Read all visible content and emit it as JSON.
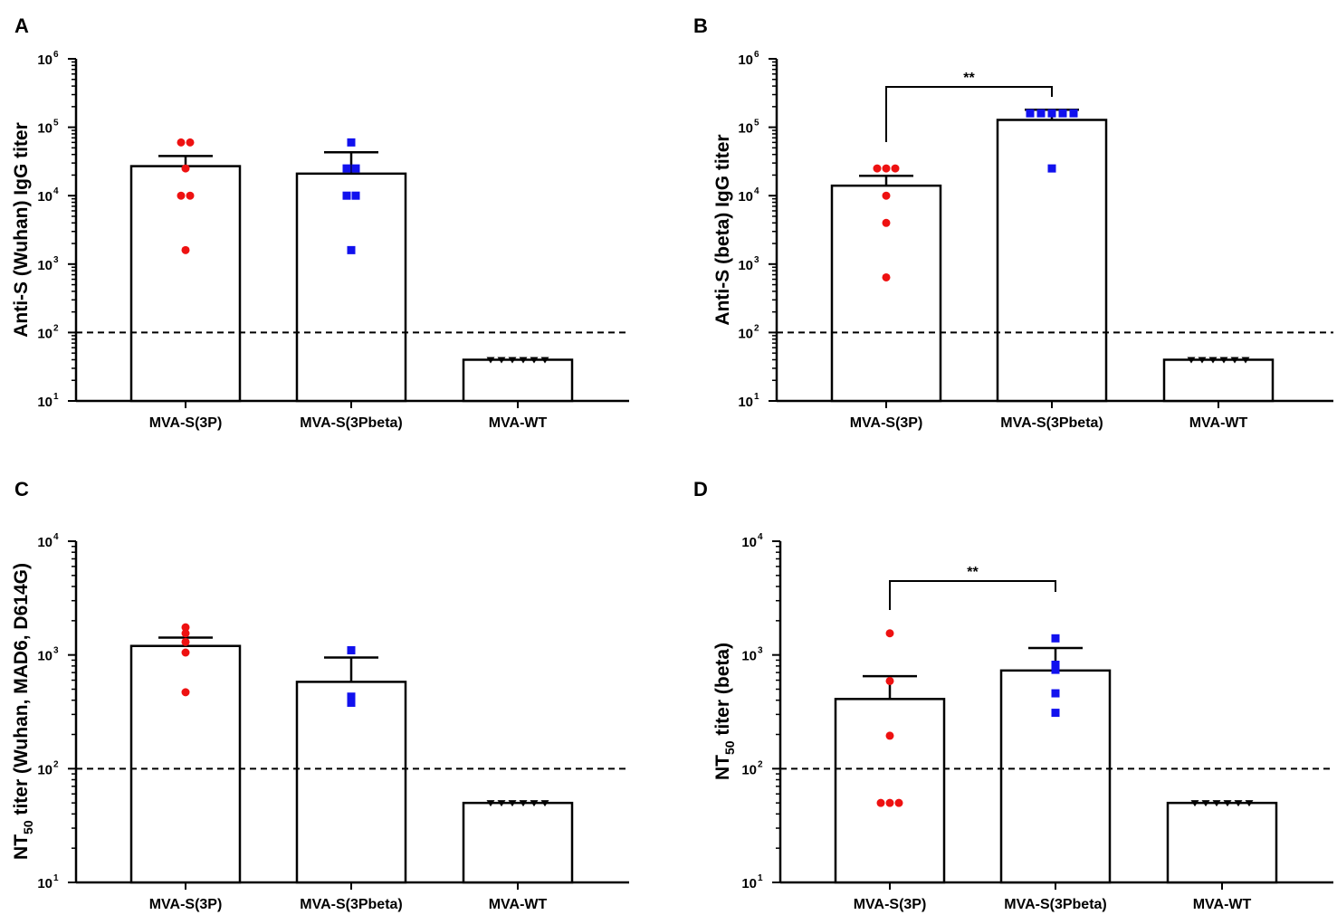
{
  "colors": {
    "group1": "#ee1111",
    "group2": "#1111ee",
    "group3": "#000000",
    "axis": "#000000",
    "bar_fill": "#ffffff"
  },
  "chart_data": [
    {
      "type": "bar",
      "panel": "A",
      "ylabel": "Anti-S (Wuhan) IgG titer",
      "yscale": "log",
      "ylim": [
        10,
        1000000
      ],
      "yticks": [
        {
          "base": "10",
          "exp": "1"
        },
        {
          "base": "10",
          "exp": "2"
        },
        {
          "base": "10",
          "exp": "3"
        },
        {
          "base": "10",
          "exp": "4"
        },
        {
          "base": "10",
          "exp": "5"
        },
        {
          "base": "10",
          "exp": "6"
        }
      ],
      "categories": [
        "MVA-S(3P)",
        "MVA-S(3Pbeta)",
        "MVA-WT"
      ],
      "values": [
        27000,
        21000,
        40
      ],
      "errors": [
        38000,
        43000,
        null
      ],
      "points": [
        [
          60000,
          60000,
          25000,
          10000,
          10000,
          1600
        ],
        [
          60000,
          25000,
          25000,
          10000,
          10000,
          1600
        ],
        [
          40,
          40,
          40,
          40,
          40,
          40
        ]
      ],
      "cutoff": 100,
      "significance": null
    },
    {
      "type": "bar",
      "panel": "B",
      "ylabel": "Anti-S (beta) IgG titer",
      "yscale": "log",
      "ylim": [
        10,
        1000000
      ],
      "yticks": [
        {
          "base": "10",
          "exp": "1"
        },
        {
          "base": "10",
          "exp": "2"
        },
        {
          "base": "10",
          "exp": "3"
        },
        {
          "base": "10",
          "exp": "4"
        },
        {
          "base": "10",
          "exp": "5"
        },
        {
          "base": "10",
          "exp": "6"
        }
      ],
      "categories": [
        "MVA-S(3P)",
        "MVA-S(3Pbeta)",
        "MVA-WT"
      ],
      "values": [
        14000,
        128000,
        40
      ],
      "errors": [
        19500,
        180000,
        null
      ],
      "points": [
        [
          25000,
          25000,
          25000,
          10000,
          4000,
          640
        ],
        [
          160000,
          160000,
          160000,
          160000,
          160000,
          25000
        ],
        [
          40,
          40,
          40,
          40,
          40,
          40
        ]
      ],
      "cutoff": 100,
      "significance": {
        "from": 0,
        "to": 1,
        "label": "**"
      }
    },
    {
      "type": "bar",
      "panel": "C",
      "ylabel_main": "NT",
      "ylabel_sub": "50",
      "ylabel_rest": " titer (Wuhan, MAD6, D614G)",
      "yscale": "log",
      "ylim": [
        10,
        10000
      ],
      "yticks": [
        {
          "base": "10",
          "exp": "1"
        },
        {
          "base": "10",
          "exp": "2"
        },
        {
          "base": "10",
          "exp": "3"
        },
        {
          "base": "10",
          "exp": "4"
        }
      ],
      "categories": [
        "MVA-S(3P)",
        "MVA-S(3Pbeta)",
        "MVA-WT"
      ],
      "values": [
        1200,
        580,
        50
      ],
      "errors": [
        1420,
        950,
        null
      ],
      "points": [
        [
          1750,
          1550,
          1300,
          1050,
          470
        ],
        [
          1100,
          430,
          380
        ],
        [
          50,
          50,
          50,
          50,
          50,
          50
        ]
      ],
      "cutoff": 100,
      "significance": null
    },
    {
      "type": "bar",
      "panel": "D",
      "ylabel_main": "NT",
      "ylabel_sub": "50",
      "ylabel_rest": " titer (beta)",
      "yscale": "log",
      "ylim": [
        10,
        10000
      ],
      "yticks": [
        {
          "base": "10",
          "exp": "1"
        },
        {
          "base": "10",
          "exp": "2"
        },
        {
          "base": "10",
          "exp": "3"
        },
        {
          "base": "10",
          "exp": "4"
        }
      ],
      "categories": [
        "MVA-S(3P)",
        "MVA-S(3Pbeta)",
        "MVA-WT"
      ],
      "values": [
        410,
        730,
        50
      ],
      "errors": [
        650,
        1150,
        null
      ],
      "points": [
        [
          1550,
          590,
          195,
          50,
          50,
          50
        ],
        [
          1400,
          820,
          740,
          460,
          310
        ],
        [
          50,
          50,
          50,
          50,
          50,
          50
        ]
      ],
      "cutoff": 100,
      "significance": {
        "from": 0,
        "to": 1,
        "label": "**"
      }
    }
  ]
}
